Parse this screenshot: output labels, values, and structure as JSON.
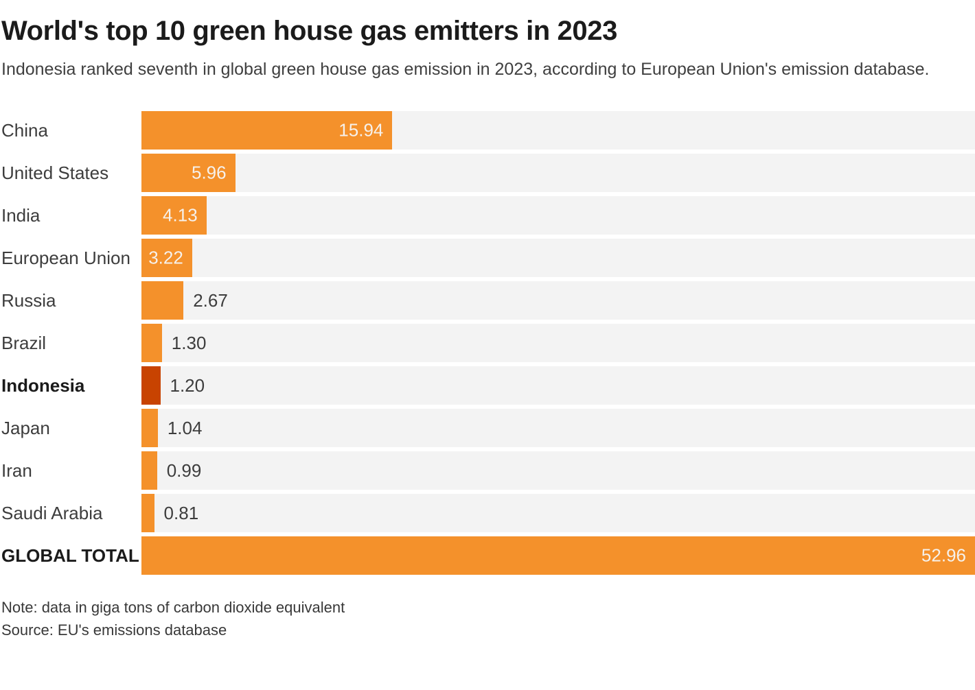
{
  "header": {
    "title": "World's top 10 green house gas emitters in 2023",
    "subtitle": "Indonesia ranked seventh in global green house gas emission in 2023, according to European Union's emission database."
  },
  "chart_data": {
    "type": "bar",
    "orientation": "horizontal",
    "unit": "giga tons of carbon dioxide equivalent",
    "xlim": [
      0,
      52.96
    ],
    "grid": false,
    "legend": false,
    "categories": [
      "China",
      "United States",
      "India",
      "European Union",
      "Russia",
      "Brazil",
      "Indonesia",
      "Japan",
      "Iran",
      "Saudi Arabia",
      "GLOBAL TOTAL"
    ],
    "values": [
      15.94,
      5.96,
      4.13,
      3.22,
      2.67,
      1.3,
      1.2,
      1.04,
      0.99,
      0.81,
      52.96
    ],
    "rows": [
      {
        "category": "China",
        "value": 15.94,
        "value_label": "15.94",
        "label_inside": true,
        "bold": false,
        "highlight": false
      },
      {
        "category": "United States",
        "value": 5.96,
        "value_label": "5.96",
        "label_inside": true,
        "bold": false,
        "highlight": false
      },
      {
        "category": "India",
        "value": 4.13,
        "value_label": "4.13",
        "label_inside": true,
        "bold": false,
        "highlight": false
      },
      {
        "category": "European Union",
        "value": 3.22,
        "value_label": "3.22",
        "label_inside": true,
        "bold": false,
        "highlight": false
      },
      {
        "category": "Russia",
        "value": 2.67,
        "value_label": "2.67",
        "label_inside": false,
        "bold": false,
        "highlight": false
      },
      {
        "category": "Brazil",
        "value": 1.3,
        "value_label": "1.30",
        "label_inside": false,
        "bold": false,
        "highlight": false
      },
      {
        "category": "Indonesia",
        "value": 1.2,
        "value_label": "1.20",
        "label_inside": false,
        "bold": true,
        "highlight": true
      },
      {
        "category": "Japan",
        "value": 1.04,
        "value_label": "1.04",
        "label_inside": false,
        "bold": false,
        "highlight": false
      },
      {
        "category": "Iran",
        "value": 0.99,
        "value_label": "0.99",
        "label_inside": false,
        "bold": false,
        "highlight": false
      },
      {
        "category": "Saudi Arabia",
        "value": 0.81,
        "value_label": "0.81",
        "label_inside": false,
        "bold": false,
        "highlight": false
      },
      {
        "category": "GLOBAL TOTAL",
        "value": 52.96,
        "value_label": "52.96",
        "label_inside": true,
        "bold": true,
        "highlight": false
      }
    ],
    "colors": {
      "bar": "#F4912B",
      "highlight_bar": "#C84301",
      "track": "#F3F3F3",
      "value_inside": "#F6F1EB",
      "value_outside": "#3D3D3D"
    }
  },
  "footer": {
    "note": "Note: data in giga tons of carbon dioxide equivalent",
    "source": "Source: EU's emissions database"
  }
}
